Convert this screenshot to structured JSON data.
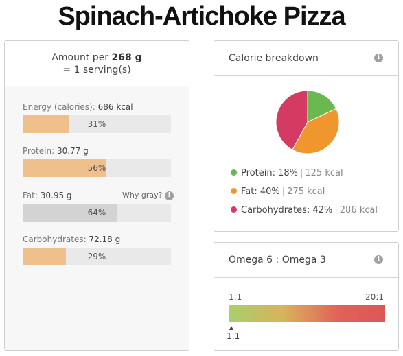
{
  "page": {
    "title": "Spinach-Artichoke Pizza"
  },
  "amount": {
    "prefix": "Amount per",
    "weight": "268 g",
    "serving": "= 1 serving(s)"
  },
  "nutrients": [
    {
      "label": "Energy (calories):",
      "value": "686 kcal",
      "percent_text": "31%",
      "fraction": 0.31,
      "gray": false
    },
    {
      "label": "Protein:",
      "value": "30.77 g",
      "percent_text": "56%",
      "fraction": 0.56,
      "gray": false
    },
    {
      "label": "Fat:",
      "value": "30.95 g",
      "percent_text": "64%",
      "fraction": 0.64,
      "gray": true
    },
    {
      "label": "Carbohydrates:",
      "value": "72.18 g",
      "percent_text": "29%",
      "fraction": 0.29,
      "gray": false
    }
  ],
  "why_gray": {
    "label": "Why gray?",
    "icon": "info-icon"
  },
  "calorie_breakdown": {
    "title": "Calorie breakdown",
    "icon": "info-icon",
    "items": [
      {
        "name": "Protein:",
        "percent": "18%",
        "kcal": "125 kcal",
        "color": "#6ab84f"
      },
      {
        "name": "Fat:",
        "percent": "40%",
        "kcal": "275 kcal",
        "color": "#f0962f"
      },
      {
        "name": "Carbohydrates:",
        "percent": "42%",
        "kcal": "286 kcal",
        "color": "#d43b63"
      }
    ]
  },
  "chart_data": {
    "type": "pie",
    "categories": [
      "Protein",
      "Fat",
      "Carbohydrates"
    ],
    "values": [
      18,
      40,
      42
    ],
    "colors": [
      "#6ab84f",
      "#f0962f",
      "#d43b63"
    ]
  },
  "omega": {
    "title": "Omega 6 : Omega 3",
    "icon": "info-icon",
    "scale_min": "1:1",
    "scale_max": "20:1",
    "marker_label": "1:1",
    "marker_fraction": 0.0
  }
}
